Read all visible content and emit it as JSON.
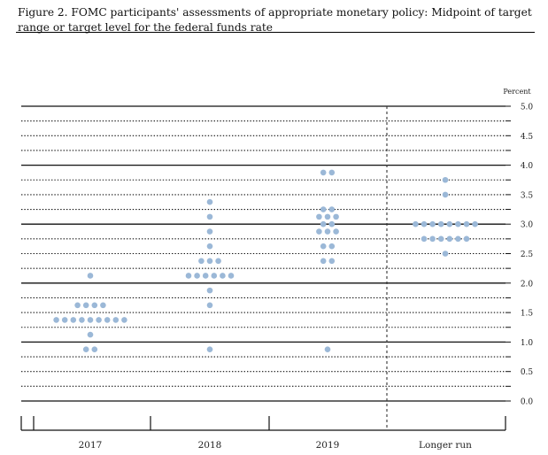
{
  "figure": {
    "caption": "Figure 2. FOMC participants' assessments of appropriate monetary policy: Midpoint of target range or target level for the federal funds rate"
  },
  "chart_data": {
    "type": "scatter",
    "style": "dot-plot",
    "title": "",
    "xlabel": "",
    "ylabel": "Percent",
    "ylim": [
      0,
      5
    ],
    "y_ticks": [
      "5.0",
      "4.5",
      "4.0",
      "3.5",
      "3.0",
      "2.5",
      "2.0",
      "1.5",
      "1.0",
      "0.5",
      "0.0"
    ],
    "y_tick_values": [
      5.0,
      4.5,
      4.0,
      3.5,
      3.0,
      2.5,
      2.0,
      1.5,
      1.0,
      0.5,
      0.0
    ],
    "grid": "solid at whole percents, dotted at intermediate quarter points",
    "categories": [
      "2017",
      "2018",
      "2019",
      "Longer run"
    ],
    "dot_color": "#9bb8d7",
    "divider_before": "Longer run",
    "series": [
      {
        "category": "2017",
        "points": [
          {
            "y": 2.125,
            "count": 1
          },
          {
            "y": 1.625,
            "count": 4
          },
          {
            "y": 1.375,
            "count": 9
          },
          {
            "y": 1.125,
            "count": 1
          },
          {
            "y": 0.875,
            "count": 2
          }
        ]
      },
      {
        "category": "2018",
        "points": [
          {
            "y": 3.375,
            "count": 1
          },
          {
            "y": 3.125,
            "count": 1
          },
          {
            "y": 2.875,
            "count": 1
          },
          {
            "y": 2.625,
            "count": 1
          },
          {
            "y": 2.375,
            "count": 3
          },
          {
            "y": 2.125,
            "count": 6
          },
          {
            "y": 1.875,
            "count": 1
          },
          {
            "y": 1.625,
            "count": 1
          },
          {
            "y": 0.875,
            "count": 1
          }
        ]
      },
      {
        "category": "2019",
        "points": [
          {
            "y": 3.875,
            "count": 2
          },
          {
            "y": 3.25,
            "count": 2
          },
          {
            "y": 3.125,
            "count": 3
          },
          {
            "y": 3.0,
            "count": 2
          },
          {
            "y": 2.875,
            "count": 3
          },
          {
            "y": 2.625,
            "count": 2
          },
          {
            "y": 2.375,
            "count": 2
          },
          {
            "y": 0.875,
            "count": 1
          }
        ]
      },
      {
        "category": "Longer run",
        "points": [
          {
            "y": 3.75,
            "count": 1
          },
          {
            "y": 3.5,
            "count": 1
          },
          {
            "y": 3.0,
            "count": 8
          },
          {
            "y": 2.75,
            "count": 6
          },
          {
            "y": 2.5,
            "count": 1
          }
        ]
      }
    ]
  }
}
